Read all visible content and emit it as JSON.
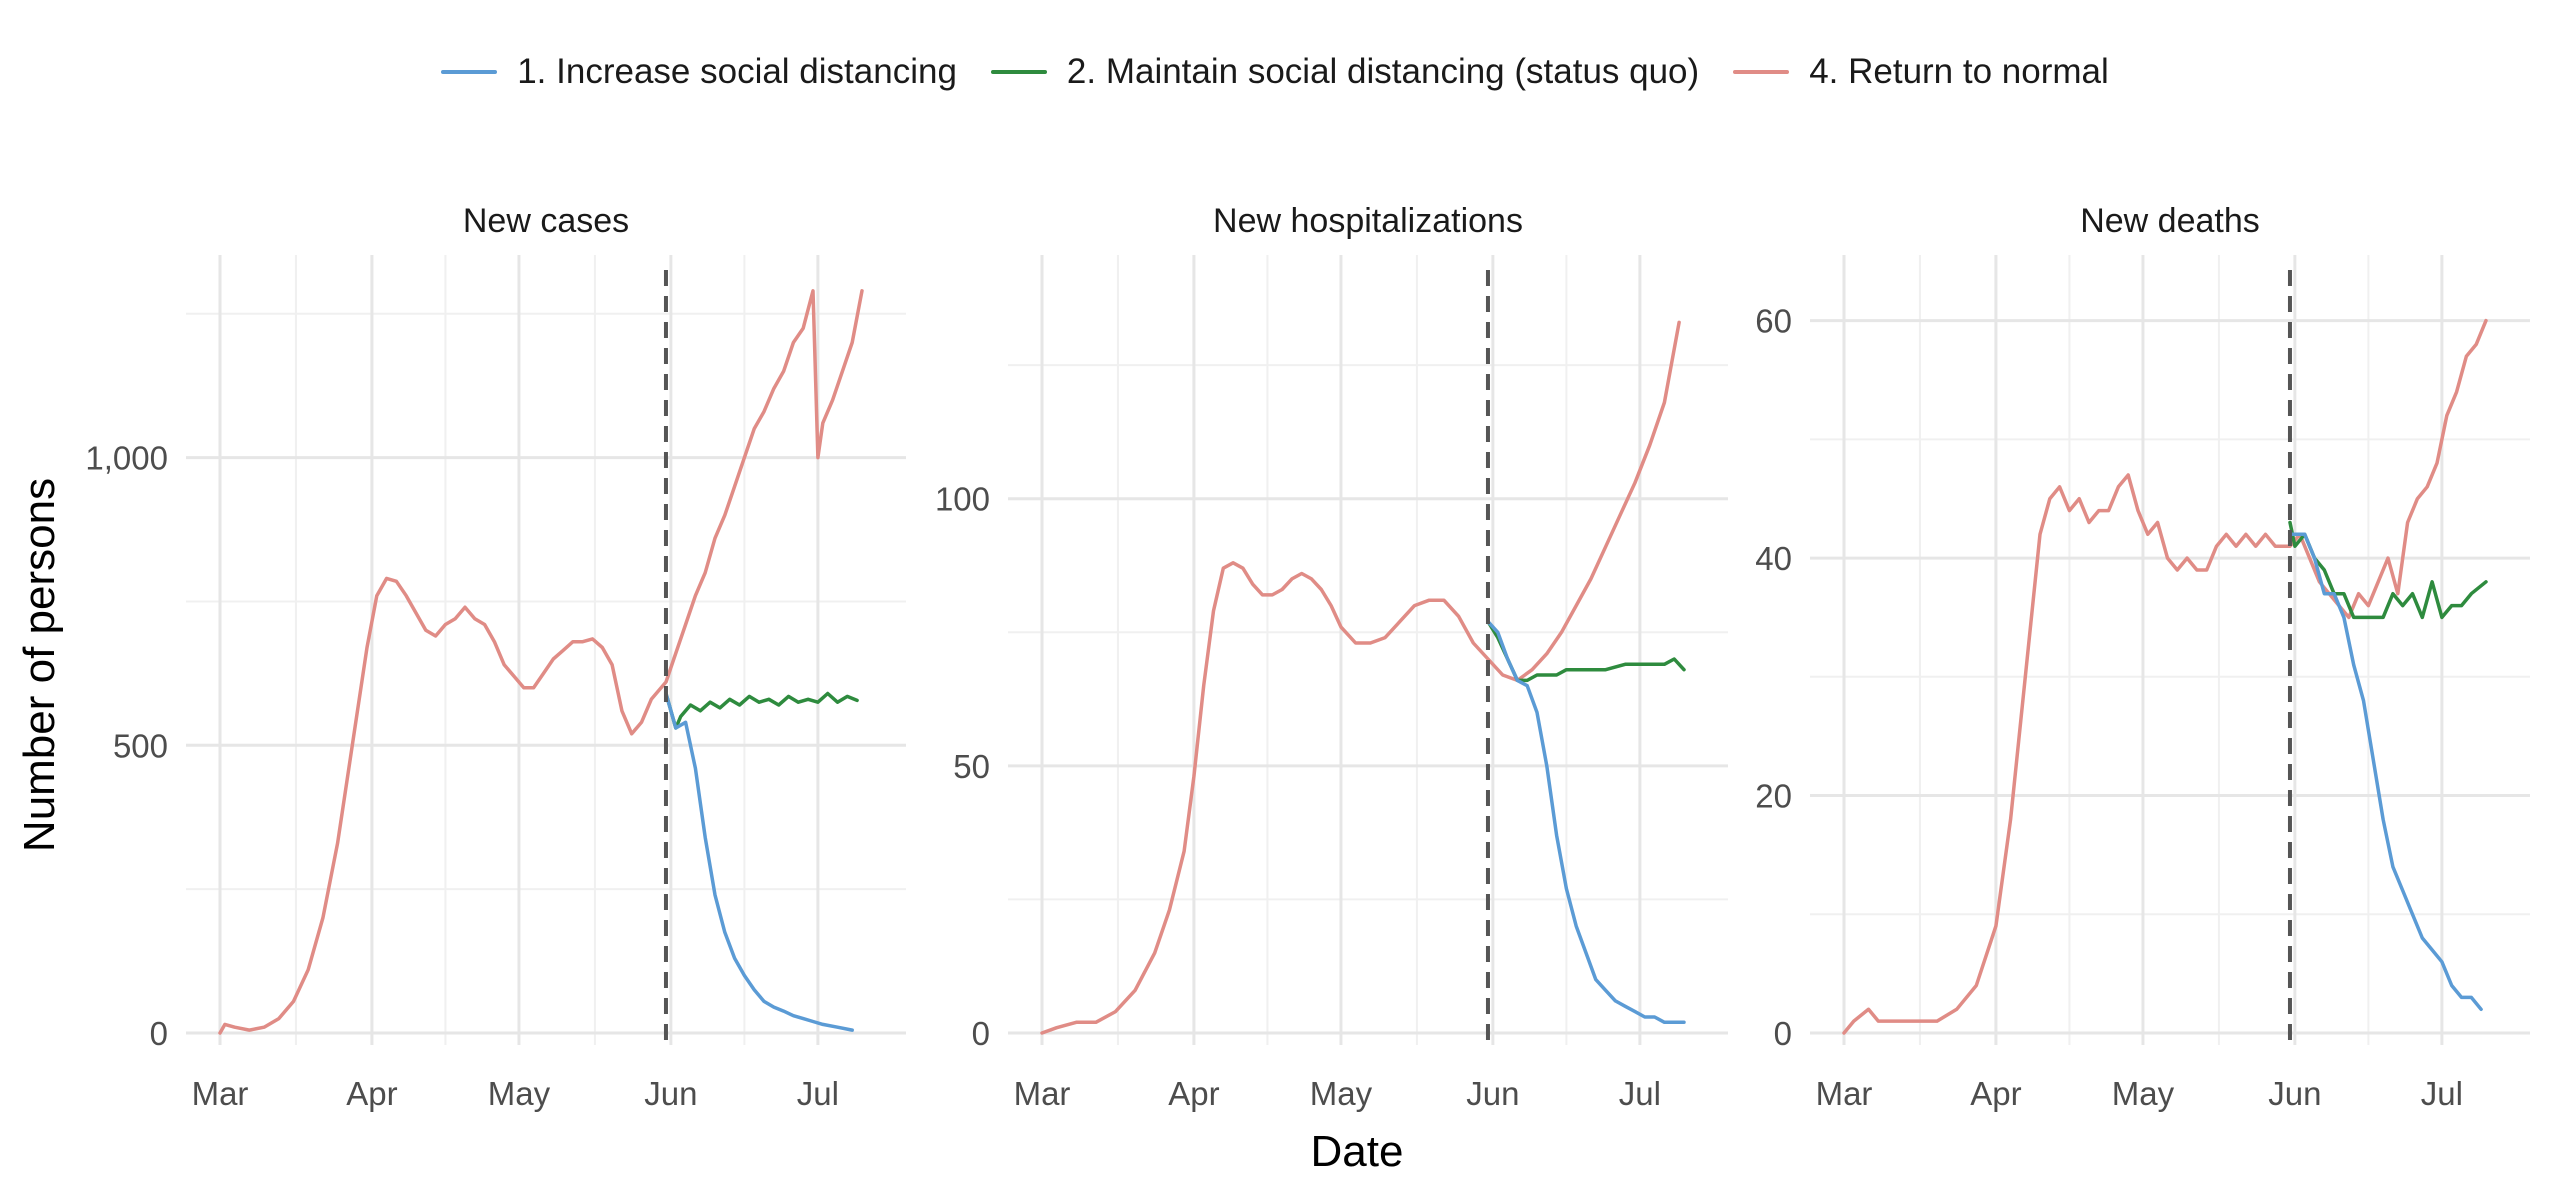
{
  "legend": {
    "items": [
      {
        "label": "1. Increase social distancing",
        "color": "#5b9bd5"
      },
      {
        "label": "2. Maintain social distancing (status quo)",
        "color": "#2e8b3e"
      },
      {
        "label": "4. Return to normal",
        "color": "#e08c86"
      }
    ]
  },
  "axes": {
    "xlabel": "Date",
    "ylabel": "Number of persons"
  },
  "chart_data": [
    {
      "type": "line",
      "title": "New cases",
      "x_ticks": [
        "Mar",
        "Apr",
        "May",
        "Jun",
        "Jul"
      ],
      "x_tick_dates": [
        "2020-03-01",
        "2020-04-01",
        "2020-05-01",
        "2020-06-01",
        "2020-07-01"
      ],
      "xlim": [
        "2020-03-01",
        "2020-07-10"
      ],
      "ylim": [
        0,
        1300
      ],
      "y_ticks": [
        0,
        500,
        1000
      ],
      "y_tick_labels": [
        "0",
        "500",
        "1,000"
      ],
      "y_minor": [
        250,
        750,
        1250
      ],
      "vline": "2020-05-31",
      "series": [
        {
          "name": "1. Increase social distancing",
          "color": "#5b9bd5",
          "x": [
            "2020-05-31",
            "2020-06-02",
            "2020-06-04",
            "2020-06-06",
            "2020-06-08",
            "2020-06-10",
            "2020-06-12",
            "2020-06-14",
            "2020-06-16",
            "2020-06-18",
            "2020-06-20",
            "2020-06-22",
            "2020-06-24",
            "2020-06-26",
            "2020-06-28",
            "2020-06-30",
            "2020-07-02",
            "2020-07-05",
            "2020-07-08"
          ],
          "y": [
            590,
            530,
            540,
            460,
            340,
            240,
            175,
            130,
            100,
            75,
            55,
            45,
            38,
            30,
            25,
            20,
            15,
            10,
            5
          ]
        },
        {
          "name": "2. Maintain social distancing (status quo)",
          "color": "#2e8b3e",
          "x": [
            "2020-05-31",
            "2020-06-02",
            "2020-06-03",
            "2020-06-05",
            "2020-06-07",
            "2020-06-09",
            "2020-06-11",
            "2020-06-13",
            "2020-06-15",
            "2020-06-17",
            "2020-06-19",
            "2020-06-21",
            "2020-06-23",
            "2020-06-25",
            "2020-06-27",
            "2020-06-29",
            "2020-07-01",
            "2020-07-03",
            "2020-07-05",
            "2020-07-07",
            "2020-07-09"
          ],
          "y": [
            590,
            530,
            550,
            570,
            560,
            575,
            565,
            580,
            570,
            585,
            575,
            580,
            570,
            585,
            575,
            580,
            575,
            590,
            575,
            585,
            578
          ]
        },
        {
          "name": "4. Return to normal",
          "color": "#e08c86",
          "x": [
            "2020-03-01",
            "2020-03-02",
            "2020-03-04",
            "2020-03-07",
            "2020-03-10",
            "2020-03-13",
            "2020-03-16",
            "2020-03-19",
            "2020-03-22",
            "2020-03-25",
            "2020-03-28",
            "2020-03-31",
            "2020-04-02",
            "2020-04-04",
            "2020-04-06",
            "2020-04-08",
            "2020-04-10",
            "2020-04-12",
            "2020-04-14",
            "2020-04-16",
            "2020-04-18",
            "2020-04-20",
            "2020-04-22",
            "2020-04-24",
            "2020-04-26",
            "2020-04-28",
            "2020-04-30",
            "2020-05-02",
            "2020-05-04",
            "2020-05-06",
            "2020-05-08",
            "2020-05-10",
            "2020-05-12",
            "2020-05-14",
            "2020-05-16",
            "2020-05-18",
            "2020-05-20",
            "2020-05-22",
            "2020-05-24",
            "2020-05-26",
            "2020-05-28",
            "2020-05-31",
            "2020-06-02",
            "2020-06-04",
            "2020-06-06",
            "2020-06-08",
            "2020-06-10",
            "2020-06-12",
            "2020-06-14",
            "2020-06-16",
            "2020-06-18",
            "2020-06-20",
            "2020-06-22",
            "2020-06-24",
            "2020-06-26",
            "2020-06-28",
            "2020-06-30",
            "2020-07-01",
            "2020-07-02",
            "2020-07-04",
            "2020-07-06",
            "2020-07-08",
            "2020-07-10"
          ],
          "y": [
            0,
            15,
            10,
            5,
            10,
            25,
            55,
            110,
            200,
            330,
            500,
            670,
            760,
            790,
            785,
            760,
            730,
            700,
            690,
            710,
            720,
            740,
            720,
            710,
            680,
            640,
            620,
            600,
            600,
            625,
            650,
            665,
            680,
            680,
            685,
            670,
            640,
            560,
            520,
            540,
            580,
            610,
            660,
            710,
            760,
            800,
            860,
            900,
            950,
            1000,
            1050,
            1080,
            1120,
            1150,
            1200,
            1225,
            1290,
            1000,
            1060,
            1100,
            1150,
            1200,
            1290
          ]
        }
      ]
    },
    {
      "type": "line",
      "title": "New hospitalizations",
      "x_ticks": [
        "Mar",
        "Apr",
        "May",
        "Jun",
        "Jul"
      ],
      "x_tick_dates": [
        "2020-03-01",
        "2020-04-01",
        "2020-05-01",
        "2020-06-01",
        "2020-07-01"
      ],
      "xlim": [
        "2020-03-01",
        "2020-07-10"
      ],
      "ylim": [
        0,
        140
      ],
      "y_ticks": [
        0,
        50,
        100
      ],
      "y_tick_labels": [
        "0",
        "50",
        "100"
      ],
      "y_minor": [
        25,
        75,
        125
      ],
      "vline": "2020-05-31",
      "series": [
        {
          "name": "1. Increase social distancing",
          "color": "#5b9bd5",
          "x": [
            "2020-05-31",
            "2020-06-02",
            "2020-06-04",
            "2020-06-06",
            "2020-06-08",
            "2020-06-10",
            "2020-06-12",
            "2020-06-14",
            "2020-06-16",
            "2020-06-18",
            "2020-06-20",
            "2020-06-22",
            "2020-06-24",
            "2020-06-26",
            "2020-06-28",
            "2020-06-30",
            "2020-07-02",
            "2020-07-04",
            "2020-07-06",
            "2020-07-08",
            "2020-07-10"
          ],
          "y": [
            77,
            75,
            70,
            66,
            65,
            60,
            50,
            37,
            27,
            20,
            15,
            10,
            8,
            6,
            5,
            4,
            3,
            3,
            2,
            2,
            2
          ]
        },
        {
          "name": "2. Maintain social distancing (status quo)",
          "color": "#2e8b3e",
          "x": [
            "2020-05-31",
            "2020-06-02",
            "2020-06-04",
            "2020-06-06",
            "2020-06-08",
            "2020-06-10",
            "2020-06-14",
            "2020-06-16",
            "2020-06-20",
            "2020-06-24",
            "2020-06-28",
            "2020-07-02",
            "2020-07-06",
            "2020-07-08",
            "2020-07-10"
          ],
          "y": [
            77,
            74,
            70,
            66,
            66,
            67,
            67,
            68,
            68,
            68,
            69,
            69,
            69,
            70,
            68
          ]
        },
        {
          "name": "4. Return to normal",
          "color": "#e08c86",
          "x": [
            "2020-03-01",
            "2020-03-04",
            "2020-03-08",
            "2020-03-12",
            "2020-03-16",
            "2020-03-20",
            "2020-03-24",
            "2020-03-27",
            "2020-03-30",
            "2020-04-01",
            "2020-04-03",
            "2020-04-05",
            "2020-04-07",
            "2020-04-09",
            "2020-04-11",
            "2020-04-13",
            "2020-04-15",
            "2020-04-17",
            "2020-04-19",
            "2020-04-21",
            "2020-04-23",
            "2020-04-25",
            "2020-04-27",
            "2020-04-29",
            "2020-05-01",
            "2020-05-04",
            "2020-05-07",
            "2020-05-10",
            "2020-05-13",
            "2020-05-16",
            "2020-05-19",
            "2020-05-22",
            "2020-05-25",
            "2020-05-28",
            "2020-05-31",
            "2020-06-03",
            "2020-06-06",
            "2020-06-09",
            "2020-06-12",
            "2020-06-15",
            "2020-06-18",
            "2020-06-21",
            "2020-06-24",
            "2020-06-27",
            "2020-06-30",
            "2020-07-03",
            "2020-07-06",
            "2020-07-09"
          ],
          "y": [
            0,
            1,
            2,
            2,
            4,
            8,
            15,
            23,
            34,
            48,
            65,
            79,
            87,
            88,
            87,
            84,
            82,
            82,
            83,
            85,
            86,
            85,
            83,
            80,
            76,
            73,
            73,
            74,
            77,
            80,
            81,
            81,
            78,
            73,
            70,
            67,
            66,
            68,
            71,
            75,
            80,
            85,
            91,
            97,
            103,
            110,
            118,
            133
          ]
        }
      ]
    },
    {
      "type": "line",
      "title": "New deaths",
      "x_ticks": [
        "Mar",
        "Apr",
        "May",
        "Jun",
        "Jul"
      ],
      "x_tick_dates": [
        "2020-03-01",
        "2020-04-01",
        "2020-05-01",
        "2020-06-01",
        "2020-07-01"
      ],
      "xlim": [
        "2020-03-01",
        "2020-07-10"
      ],
      "ylim": [
        0,
        63
      ],
      "y_ticks": [
        0,
        20,
        40,
        60
      ],
      "y_tick_labels": [
        "0",
        "20",
        "40",
        "60"
      ],
      "y_minor": [
        10,
        30,
        50
      ],
      "vline": "2020-05-31",
      "series": [
        {
          "name": "1. Increase social distancing",
          "color": "#5b9bd5",
          "x": [
            "2020-05-31",
            "2020-06-03",
            "2020-06-05",
            "2020-06-07",
            "2020-06-09",
            "2020-06-11",
            "2020-06-13",
            "2020-06-15",
            "2020-06-17",
            "2020-06-19",
            "2020-06-21",
            "2020-06-23",
            "2020-06-25",
            "2020-06-27",
            "2020-06-29",
            "2020-07-01",
            "2020-07-03",
            "2020-07-05",
            "2020-07-07",
            "2020-07-09"
          ],
          "y": [
            42,
            42,
            40,
            37,
            37,
            35,
            31,
            28,
            23,
            18,
            14,
            12,
            10,
            8,
            7,
            6,
            4,
            3,
            3,
            2
          ]
        },
        {
          "name": "2. Maintain social distancing (status quo)",
          "color": "#2e8b3e",
          "x": [
            "2020-05-31",
            "2020-06-01",
            "2020-06-03",
            "2020-06-05",
            "2020-06-07",
            "2020-06-09",
            "2020-06-11",
            "2020-06-13",
            "2020-06-15",
            "2020-06-17",
            "2020-06-19",
            "2020-06-21",
            "2020-06-23",
            "2020-06-25",
            "2020-06-27",
            "2020-06-29",
            "2020-07-01",
            "2020-07-03",
            "2020-07-05",
            "2020-07-07",
            "2020-07-10"
          ],
          "y": [
            43,
            41,
            42,
            40,
            39,
            37,
            37,
            35,
            35,
            35,
            35,
            37,
            36,
            37,
            35,
            38,
            35,
            36,
            36,
            37,
            38
          ]
        },
        {
          "name": "4. Return to normal",
          "color": "#e08c86",
          "x": [
            "2020-03-01",
            "2020-03-03",
            "2020-03-06",
            "2020-03-08",
            "2020-03-12",
            "2020-03-16",
            "2020-03-20",
            "2020-03-24",
            "2020-03-28",
            "2020-04-01",
            "2020-04-04",
            "2020-04-07",
            "2020-04-10",
            "2020-04-12",
            "2020-04-14",
            "2020-04-16",
            "2020-04-18",
            "2020-04-20",
            "2020-04-22",
            "2020-04-24",
            "2020-04-26",
            "2020-04-28",
            "2020-04-30",
            "2020-05-02",
            "2020-05-04",
            "2020-05-06",
            "2020-05-08",
            "2020-05-10",
            "2020-05-12",
            "2020-05-14",
            "2020-05-16",
            "2020-05-18",
            "2020-05-20",
            "2020-05-22",
            "2020-05-24",
            "2020-05-26",
            "2020-05-28",
            "2020-05-31",
            "2020-06-02",
            "2020-06-04",
            "2020-06-06",
            "2020-06-08",
            "2020-06-10",
            "2020-06-12",
            "2020-06-14",
            "2020-06-16",
            "2020-06-18",
            "2020-06-20",
            "2020-06-22",
            "2020-06-24",
            "2020-06-26",
            "2020-06-28",
            "2020-06-30",
            "2020-07-02",
            "2020-07-04",
            "2020-07-06",
            "2020-07-08",
            "2020-07-10"
          ],
          "y": [
            0,
            1,
            2,
            1,
            1,
            1,
            1,
            2,
            4,
            9,
            18,
            30,
            42,
            45,
            46,
            44,
            45,
            43,
            44,
            44,
            46,
            47,
            44,
            42,
            43,
            40,
            39,
            40,
            39,
            39,
            41,
            42,
            41,
            42,
            41,
            42,
            41,
            41,
            42,
            40,
            38,
            37,
            36,
            35,
            37,
            36,
            38,
            40,
            37,
            43,
            45,
            46,
            48,
            52,
            54,
            57,
            58,
            60
          ]
        }
      ]
    }
  ]
}
